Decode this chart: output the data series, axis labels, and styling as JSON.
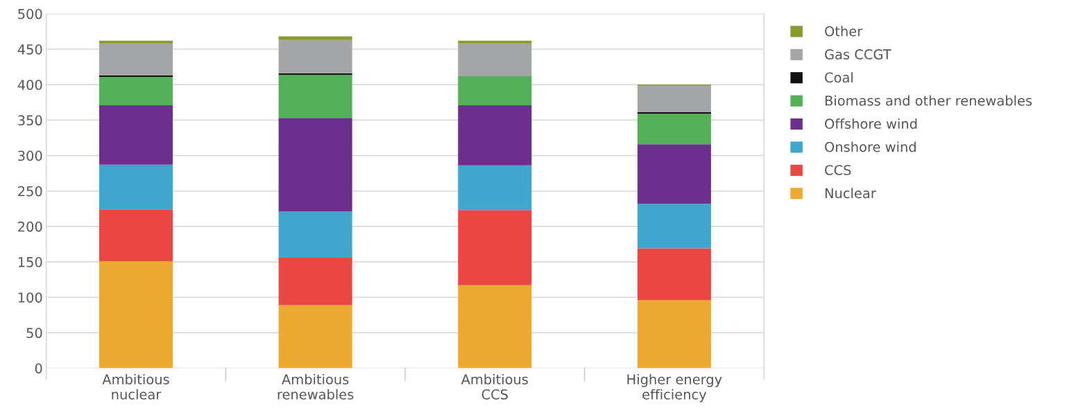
{
  "chart_data": {
    "type": "bar",
    "stacked": true,
    "categories": [
      "Ambitious\nnuclear",
      "Ambitious\nrenewables",
      "Ambitious\nCCS",
      "Higher energy\nefficiency"
    ],
    "series": [
      {
        "name": "Nuclear",
        "color": "#eeaa30",
        "values": [
          151,
          89,
          117,
          96
        ]
      },
      {
        "name": "CCS",
        "color": "#ea4642",
        "values": [
          73,
          67,
          106,
          73
        ]
      },
      {
        "name": "Onshore wind",
        "color": "#3fa7cd",
        "values": [
          63,
          65,
          63,
          63
        ]
      },
      {
        "name": "Offshore wind",
        "color": "#6b2f8e",
        "values": [
          84,
          132,
          85,
          84
        ]
      },
      {
        "name": "Biomass and other renewables",
        "color": "#53b058",
        "values": [
          40,
          61,
          41,
          43
        ]
      },
      {
        "name": "Coal",
        "color": "#111111",
        "values": [
          2,
          2,
          0,
          2
        ]
      },
      {
        "name": "Gas CCGT",
        "color": "#a4a5a7",
        "values": [
          45,
          47,
          46,
          37
        ]
      },
      {
        "name": "Other",
        "color": "#8a9a2a",
        "values": [
          4,
          5,
          4,
          2
        ]
      }
    ],
    "ylim": [
      0,
      500
    ],
    "yticks": [
      0,
      50,
      100,
      150,
      200,
      250,
      300,
      350,
      400,
      450,
      500
    ],
    "grid": "y",
    "legend": "right"
  }
}
